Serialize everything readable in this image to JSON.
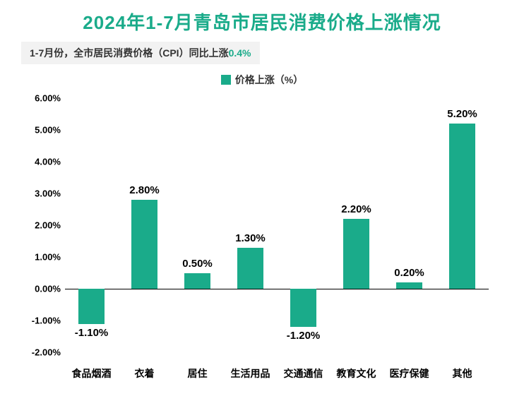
{
  "title": {
    "text": "2024年1-7月青岛市居民消费价格上涨情况",
    "color": "#1aab8a",
    "fontsize": 26
  },
  "subtitle": {
    "prefix": "1-7月份，全市居民消费价格（CPI）同比上涨",
    "highlight": "0.4%",
    "prefix_color": "#333333",
    "highlight_color": "#1aab8a",
    "fontsize": 14,
    "background": "#f2f2f2"
  },
  "legend": {
    "swatch_color": "#1aab8a",
    "label": "价格上涨（%）",
    "fontsize": 14
  },
  "chart": {
    "type": "bar",
    "categories": [
      "食品烟酒",
      "衣着",
      "居住",
      "生活用品",
      "交通通信",
      "教育文化",
      "医疗保健",
      "其他"
    ],
    "values": [
      -1.1,
      2.8,
      0.5,
      1.3,
      -1.2,
      2.2,
      0.2,
      5.2
    ],
    "value_labels": [
      "-1.10%",
      "2.80%",
      "0.50%",
      "1.30%",
      "-1.20%",
      "2.20%",
      "0.20%",
      "5.20%"
    ],
    "bar_color": "#1aab8a",
    "bar_width_ratio": 0.5,
    "ylim": [
      -2.0,
      6.0
    ],
    "ytick_step": 1.0,
    "ytick_labels": [
      "-2.00%",
      "-1.00%",
      "0.00%",
      "1.00%",
      "2.00%",
      "3.00%",
      "4.00%",
      "5.00%",
      "6.00%"
    ],
    "ytick_values": [
      -2.0,
      -1.0,
      0.0,
      1.0,
      2.0,
      3.0,
      4.0,
      5.0,
      6.0
    ],
    "axis_line_color": "#000000",
    "tick_fontsize": 13,
    "xtick_fontsize": 14,
    "label_fontsize": 15,
    "background_color": "#ffffff"
  }
}
